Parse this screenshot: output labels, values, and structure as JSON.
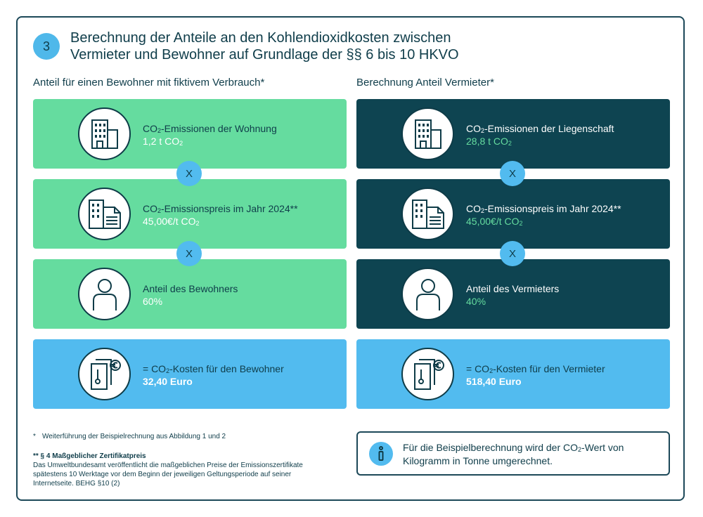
{
  "step_number": "3",
  "title_line1": "Berechnung der Anteile an den Kohlendioxidkosten zwischen",
  "title_line2": "Vermieter und Bewohner auf Grundlage der §§ 6 bis 10 HKVO",
  "left": {
    "heading": "Anteil für einen Bewohner mit fiktivem Verbrauch*",
    "emissions": {
      "label_pre": "CO",
      "label_sub": "2",
      "label_post": "-Emissionen der Wohnung",
      "value_pre": "1,2 t CO",
      "value_sub": "2",
      "icon": "building-icon"
    },
    "price": {
      "label_pre": "CO",
      "label_sub": "2",
      "label_post": "-Emissionspreis im Jahr 2024**",
      "value_pre": "45,00€/t CO",
      "value_sub": "2",
      "icon": "building-document-icon"
    },
    "share": {
      "label": "Anteil des Bewohners",
      "value": "60%",
      "icon": "person-icon"
    },
    "cost": {
      "label_pre": "= CO",
      "label_sub": "2",
      "label_post": "-Kosten für den Bewohner",
      "value": "32,40 Euro",
      "icon": "invoice-thermometer-euro-icon"
    }
  },
  "right": {
    "heading": "Berechnung Anteil Vermieter*",
    "emissions": {
      "label_pre": "CO",
      "label_sub": "2",
      "label_post": "-Emissionen der Liegenschaft",
      "value_pre": "28,8 t CO",
      "value_sub": "2",
      "icon": "building-icon"
    },
    "price": {
      "label_pre": "CO",
      "label_sub": "2",
      "label_post": "-Emissionspreis im Jahr 2024**",
      "value_pre": "45,00€/t CO",
      "value_sub": "2",
      "icon": "building-document-icon"
    },
    "share": {
      "label": "Anteil des Vermieters",
      "value": "40%",
      "icon": "person-icon"
    },
    "cost": {
      "label_pre": "= CO",
      "label_sub": "2",
      "label_post": "-Kosten für den Vermieter",
      "value": "518,40 Euro",
      "icon": "invoice-thermometer-euro-icon"
    }
  },
  "operator_symbol": "X",
  "footnote1": {
    "marker": "*",
    "text": "Weiterführung der Beispielrechnung aus Abbildung 1 und 2"
  },
  "footnote2": {
    "heading": "** § 4 Maßgeblicher Zertifikatpreis",
    "line1": "Das Umweltbundesamt veröffentlicht die maßgeblichen Preise der Emissionszertifikate",
    "line2": "spätestens 10 Werktage vor dem Beginn der jeweiligen Geltungsperiode auf seiner",
    "line3": "Internetseite. BEHG §10 (2)"
  },
  "info": {
    "line1_pre": "Für die Beispielberechnung wird der CO",
    "line1_sub": "2",
    "line1_post": "-Wert von",
    "line2": "Kilogramm in Tonne umgerechnet.",
    "icon": "info-icon"
  },
  "colors": {
    "green": "#65dc9f",
    "dark_teal": "#0e4451",
    "light_blue": "#52bbef",
    "navy_text": "#0f3d4a"
  }
}
